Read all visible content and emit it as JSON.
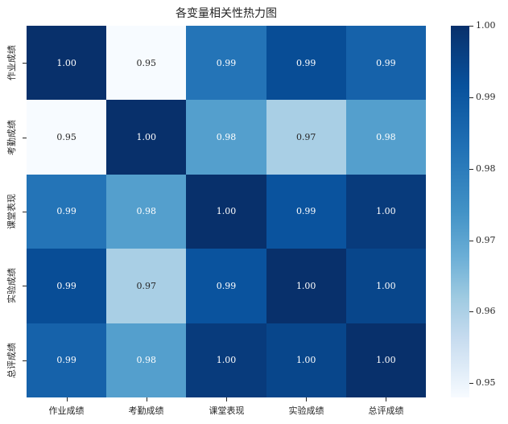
{
  "chart_data": {
    "type": "heatmap",
    "title": "各变量相关性热力图",
    "xlabel": "",
    "ylabel": "",
    "x_categories": [
      "作业成绩",
      "考勤成绩",
      "课堂表现",
      "实验成绩",
      "总评成绩"
    ],
    "y_categories": [
      "作业成绩",
      "考勤成绩",
      "课堂表现",
      "实验成绩",
      "总评成绩"
    ],
    "annotations": [
      [
        "1.00",
        "0.95",
        "0.99",
        "0.99",
        "0.99"
      ],
      [
        "0.95",
        "1.00",
        "0.98",
        "0.97",
        "0.98"
      ],
      [
        "0.99",
        "0.98",
        "1.00",
        "0.99",
        "1.00"
      ],
      [
        "0.99",
        "0.97",
        "0.99",
        "1.00",
        "1.00"
      ],
      [
        "0.99",
        "0.98",
        "1.00",
        "1.00",
        "1.00"
      ]
    ],
    "values": [
      [
        1.0,
        0.948,
        0.985,
        0.993,
        0.989
      ],
      [
        0.948,
        1.0,
        0.978,
        0.968,
        0.978
      ],
      [
        0.985,
        0.978,
        1.0,
        0.992,
        0.997
      ],
      [
        0.993,
        0.968,
        0.992,
        1.0,
        0.995
      ],
      [
        0.989,
        0.978,
        0.997,
        0.995,
        1.0
      ]
    ],
    "cell_colors": [
      [
        "#08306b",
        "#f7fbff",
        "#2474b7",
        "#084d96",
        "#1662aa"
      ],
      [
        "#f7fbff",
        "#08306b",
        "#549fcd",
        "#a9cfe5",
        "#549fcd"
      ],
      [
        "#2474b7",
        "#549fcd",
        "#08306b",
        "#0a539e",
        "#083b7c"
      ],
      [
        "#084d96",
        "#a9cfe5",
        "#0a539e",
        "#08306b",
        "#08468b"
      ],
      [
        "#1662aa",
        "#549fcd",
        "#083b7c",
        "#08468b",
        "#08306b"
      ]
    ],
    "text_colors": [
      [
        "#ffffff",
        "#262626",
        "#ffffff",
        "#ffffff",
        "#ffffff"
      ],
      [
        "#262626",
        "#ffffff",
        "#ffffff",
        "#262626",
        "#ffffff"
      ],
      [
        "#ffffff",
        "#ffffff",
        "#ffffff",
        "#ffffff",
        "#ffffff"
      ],
      [
        "#ffffff",
        "#262626",
        "#ffffff",
        "#ffffff",
        "#ffffff"
      ],
      [
        "#ffffff",
        "#ffffff",
        "#ffffff",
        "#ffffff",
        "#ffffff"
      ]
    ],
    "colormap": "Blues",
    "colorbar": {
      "vmin": 0.948,
      "vmax": 1.0,
      "ticks": [
        "1.00",
        "0.99",
        "0.98",
        "0.97",
        "0.96",
        "0.95"
      ],
      "tick_values": [
        1.0,
        0.99,
        0.98,
        0.97,
        0.96,
        0.95
      ]
    },
    "grid": false
  }
}
